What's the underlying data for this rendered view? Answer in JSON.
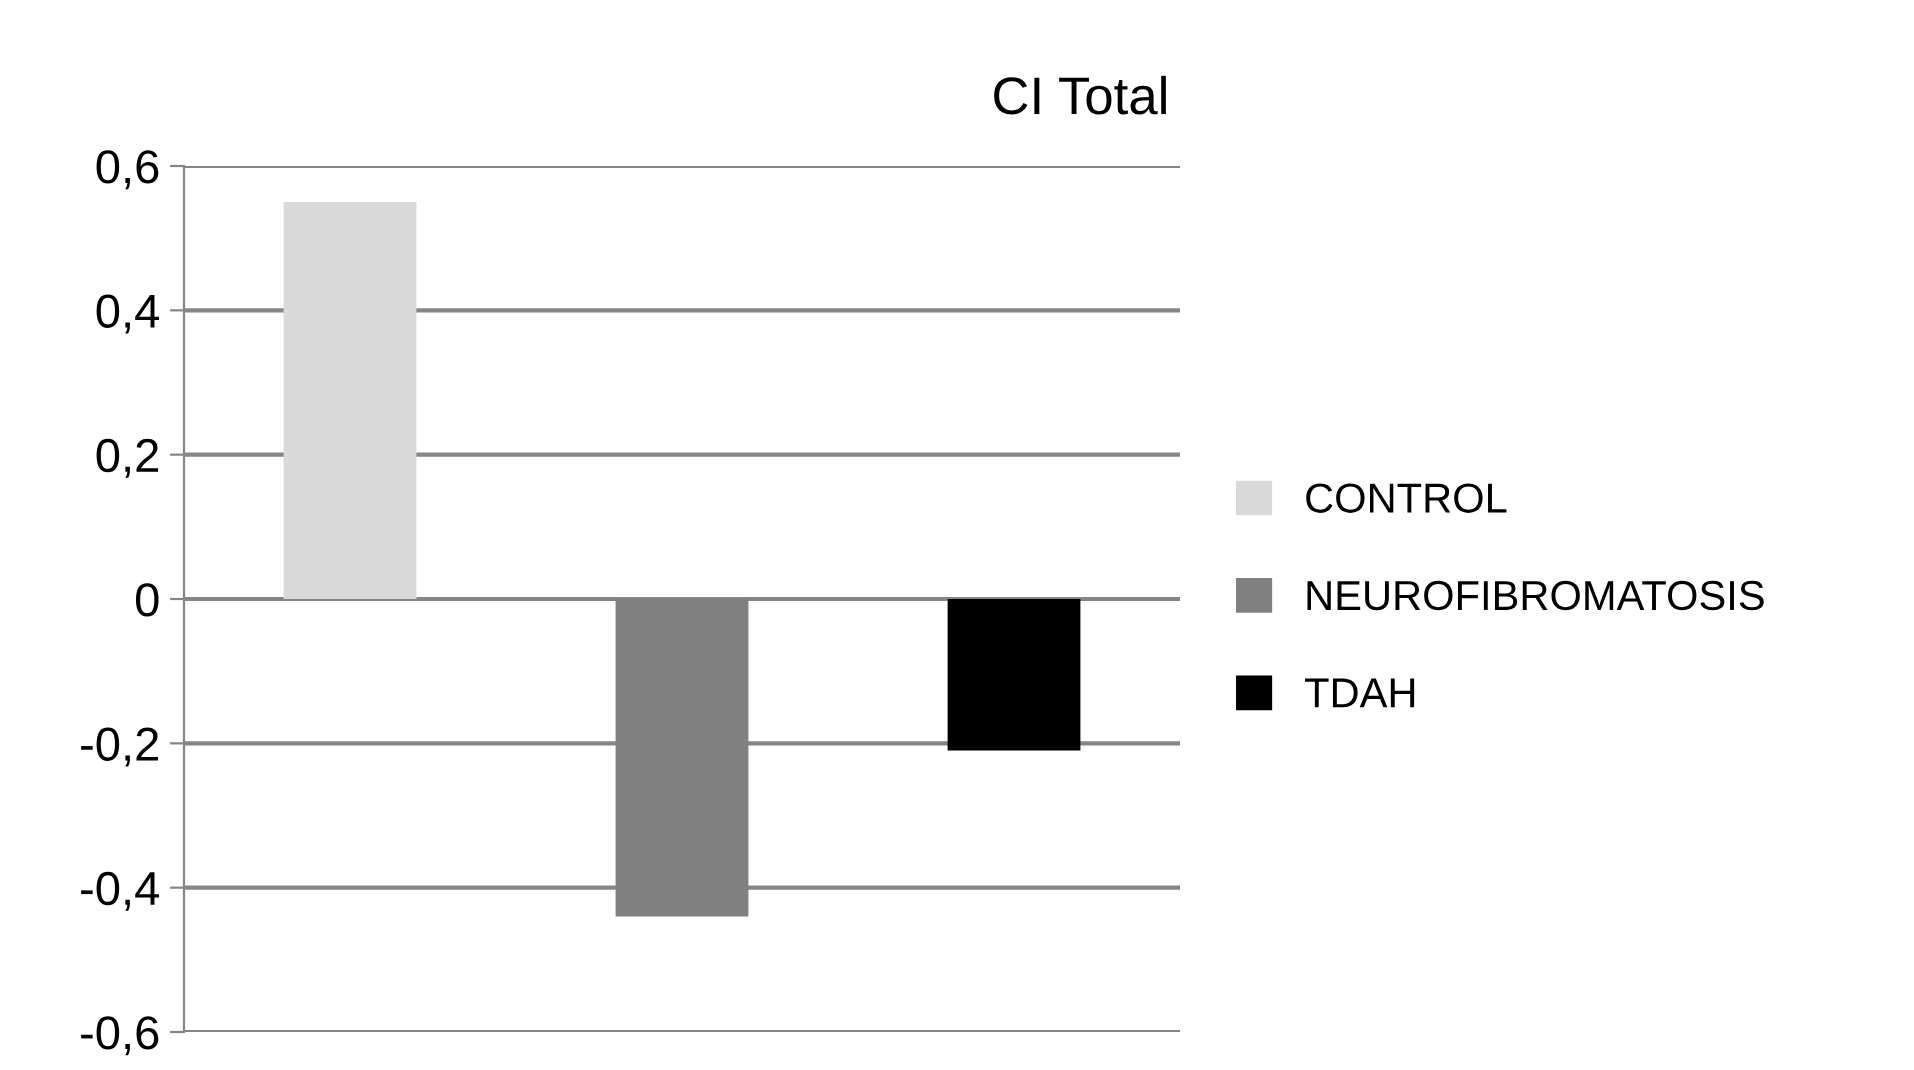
{
  "chart_data": {
    "type": "bar",
    "title": "CI Total",
    "categories": [
      null,
      null,
      null
    ],
    "series": [
      {
        "name": "CONTROL",
        "color": "#d9d9d9",
        "values": [
          0.55,
          null,
          null
        ]
      },
      {
        "name": "NEUROFIBROMATOSIS",
        "color": "#808080",
        "values": [
          null,
          -0.44,
          null
        ]
      },
      {
        "name": "TDAH",
        "color": "#000000",
        "values": [
          null,
          null,
          -0.21
        ]
      }
    ],
    "ylim": [
      -0.6,
      0.6
    ],
    "yticks": [
      {
        "value": -0.6,
        "label": "-0,6"
      },
      {
        "value": -0.4,
        "label": "-0,4"
      },
      {
        "value": -0.2,
        "label": "-0,2"
      },
      0,
      {
        "value": 0.2,
        "label": "0,2"
      },
      {
        "value": 0.4,
        "label": "0,4"
      },
      {
        "value": 0.6,
        "label": "0,6"
      }
    ],
    "grid": "y",
    "legend": "right"
  }
}
